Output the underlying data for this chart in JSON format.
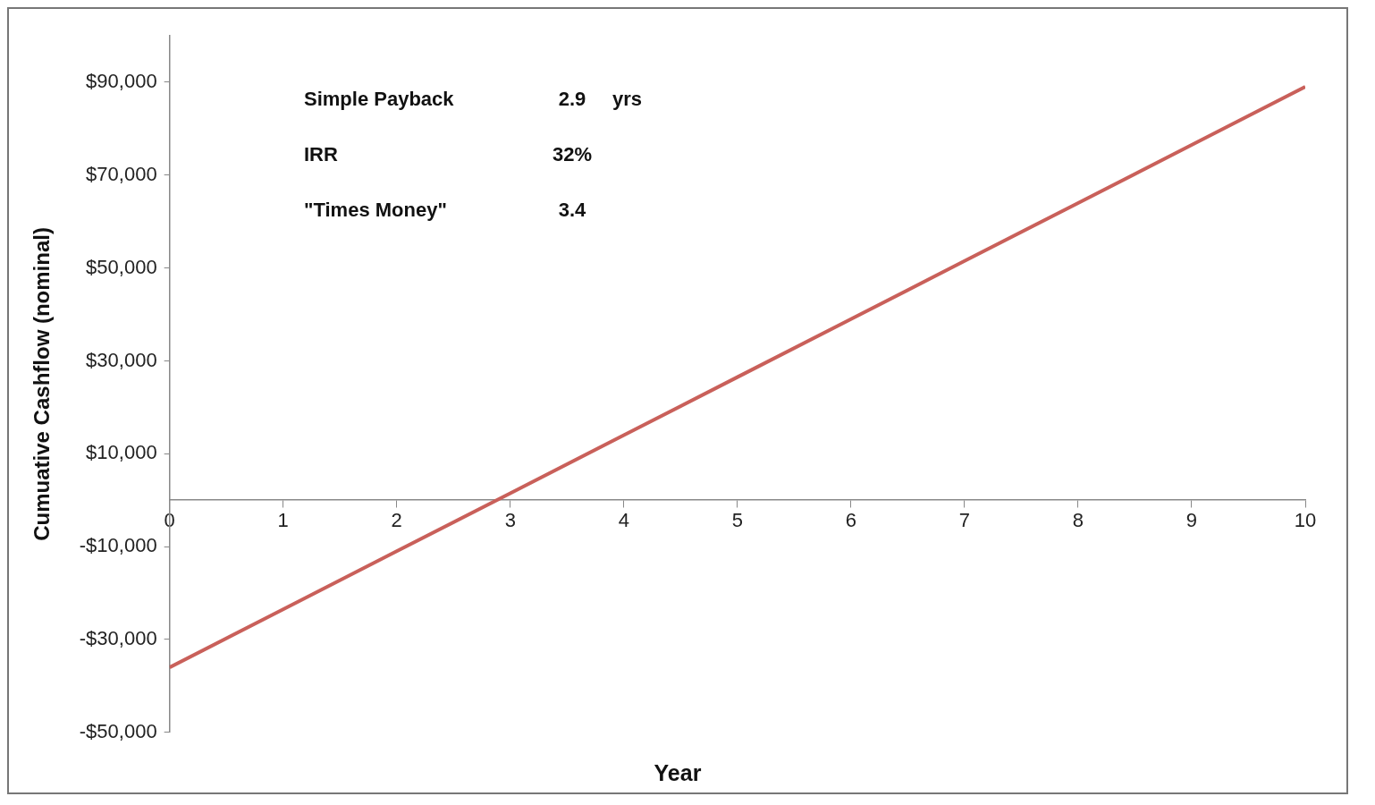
{
  "chart_data": {
    "type": "line",
    "xlabel": "Year",
    "ylabel": "Cumuative Cashflow (nominal)",
    "x": [
      0,
      1,
      2,
      3,
      4,
      5,
      6,
      7,
      8,
      9,
      10
    ],
    "series": [
      {
        "color": "#c9605a",
        "values": [
          -36000,
          -23500,
          -11000,
          1500,
          14000,
          26500,
          39000,
          51500,
          64000,
          76500,
          89000
        ]
      }
    ],
    "xlim": [
      0,
      10
    ],
    "xticks": [
      0,
      1,
      2,
      3,
      4,
      5,
      6,
      7,
      8,
      9,
      10
    ],
    "ylim": [
      -50000,
      100000
    ],
    "yticks": [
      {
        "value": -50000,
        "label": "-$50,000"
      },
      {
        "value": -30000,
        "label": "-$30,000"
      },
      {
        "value": -10000,
        "label": "-$10,000"
      },
      {
        "value": 10000,
        "label": "$10,000"
      },
      {
        "value": 30000,
        "label": "$30,000"
      },
      {
        "value": 50000,
        "label": "$50,000"
      },
      {
        "value": 70000,
        "label": "$70,000"
      },
      {
        "value": 90000,
        "label": "$90,000"
      }
    ],
    "annotations": [
      "Simple Payback\t2.9\tyrs",
      "IRR\t32%",
      "\"Times Money\"\t3.4"
    ],
    "grid": false,
    "legend": false,
    "marker": "none",
    "line_style": "solid"
  }
}
